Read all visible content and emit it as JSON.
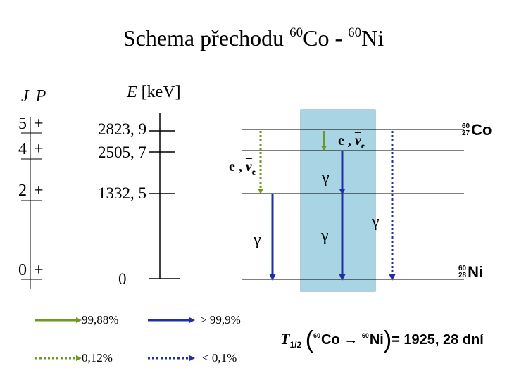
{
  "title": {
    "prefix": "Schema přechodu ",
    "parent_mass": "60",
    "parent": "Co",
    "sep": " - ",
    "daughter_mass": "60",
    "daughter": "Ni"
  },
  "headers": {
    "jp": "J P",
    "energy_var": "E",
    "energy_unit": " [keV]"
  },
  "levels": [
    {
      "spin": "5 +",
      "energy": "2823, 9"
    },
    {
      "spin": "4 +",
      "energy": "2505, 7"
    },
    {
      "spin": "2 +",
      "energy": "1332, 5"
    },
    {
      "spin": "0 +",
      "energy": "0"
    }
  ],
  "nuclides": {
    "co": {
      "mass": "60",
      "z": "27",
      "symbol": "Co"
    },
    "ni": {
      "mass": "60",
      "z": "28",
      "symbol": "Ni"
    }
  },
  "labels": {
    "gamma": "γ",
    "electron": "e",
    "comma": " , ",
    "nu": "ν",
    "e_sub": "e"
  },
  "legend": {
    "green_solid": "99,88%",
    "blue_solid": "> 99,9%",
    "green_dotted": "0,12%",
    "blue_dotted": "< 0,1%"
  },
  "half_life": {
    "t": "T",
    "t_sub": "1/2",
    "co_mass": "60",
    "co": "Co",
    "arrow": "→",
    "ni_mass": "60",
    "ni": "Ni",
    "value": "= 1925, 28 dní"
  },
  "colors": {
    "green": "#6a9a1f",
    "blue": "#1f2fa8",
    "box": "#a9d4e4"
  }
}
